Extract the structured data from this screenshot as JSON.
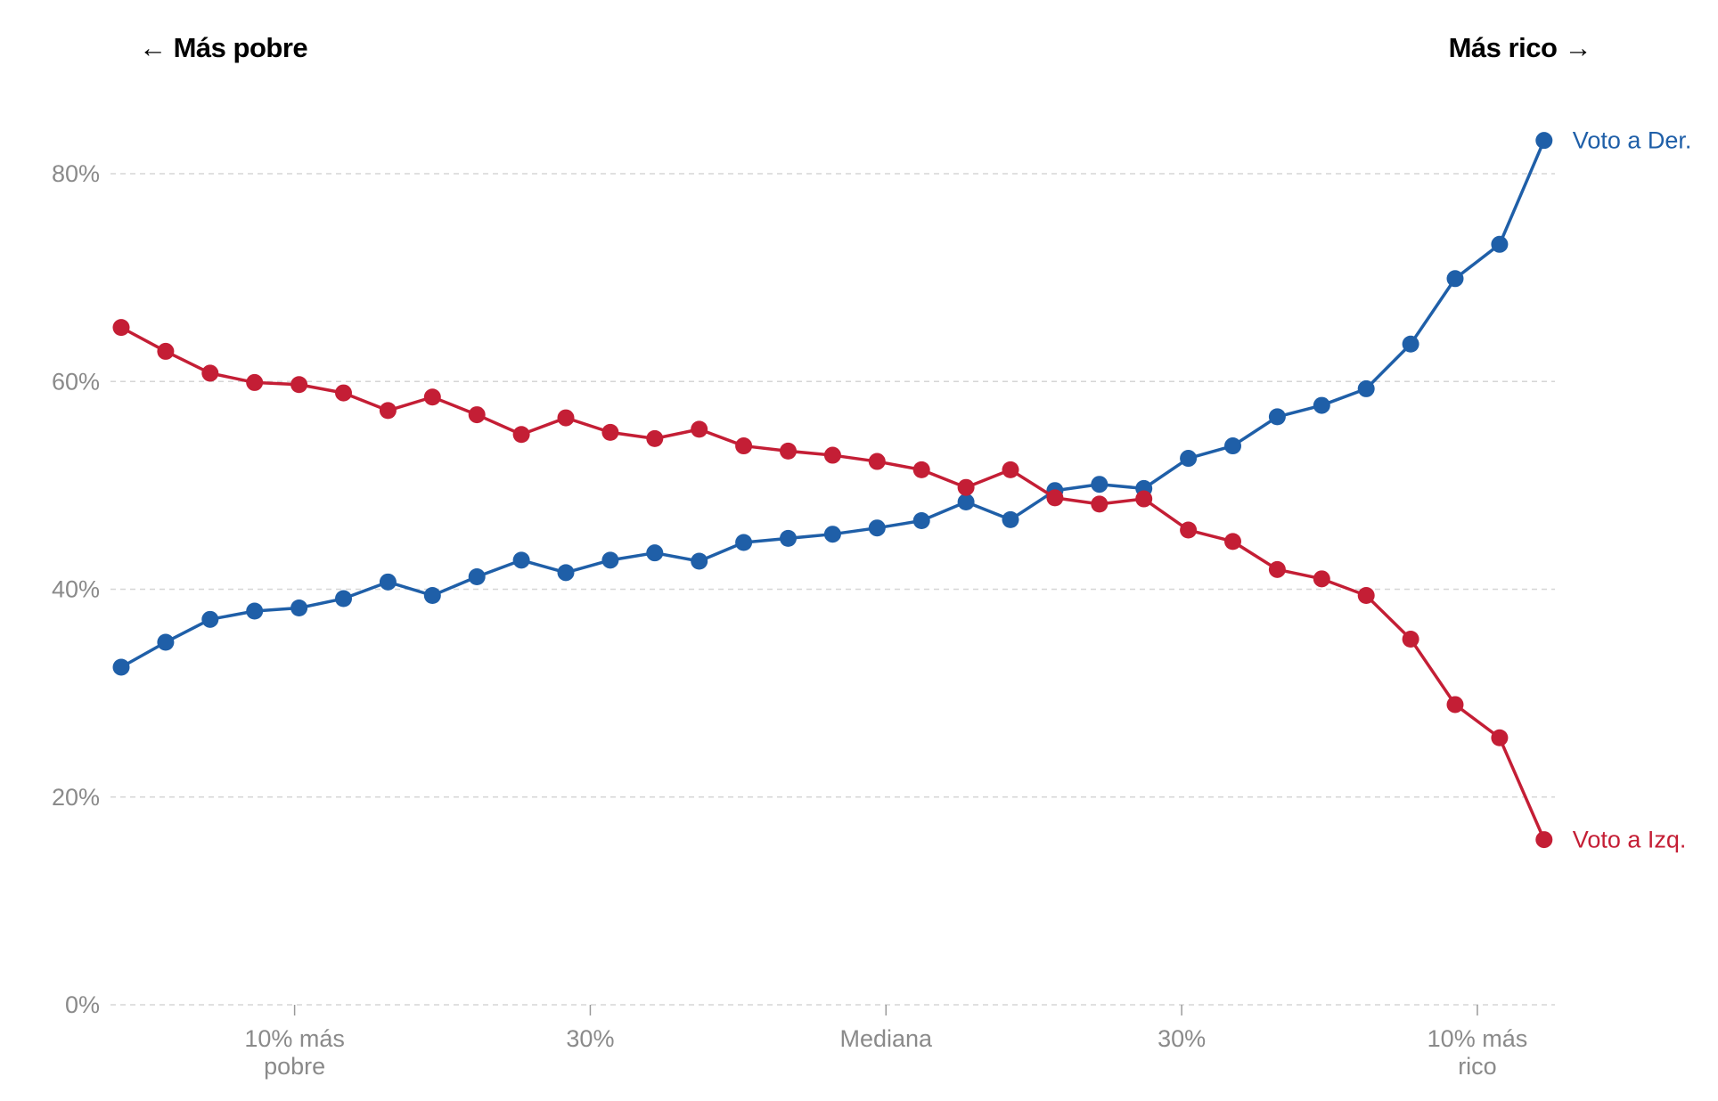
{
  "header": {
    "left_label": "← Más pobre",
    "right_label": "Más rico →"
  },
  "chart_data": {
    "type": "line",
    "ylim": [
      0,
      80
    ],
    "yticks": [
      0,
      20,
      40,
      60,
      80
    ],
    "ytick_labels": [
      "0%",
      "20%",
      "40%",
      "60%",
      "80%"
    ],
    "grid": true,
    "x_positions": 33,
    "xticks": [
      {
        "at": 3.9,
        "label": "10% más\npobre"
      },
      {
        "at": 10.55,
        "label": "30%"
      },
      {
        "at": 17.2,
        "label": "Mediana"
      },
      {
        "at": 23.85,
        "label": "30%"
      },
      {
        "at": 30.5,
        "label": "10% más\nrico"
      }
    ],
    "series": [
      {
        "name": "Voto a Der.",
        "color": "#1f5fa8",
        "values": [
          32.5,
          34.9,
          37.1,
          37.9,
          38.2,
          39.1,
          40.7,
          39.4,
          41.2,
          42.8,
          41.6,
          42.8,
          43.5,
          42.7,
          44.5,
          44.9,
          45.3,
          45.9,
          46.6,
          48.4,
          46.7,
          49.5,
          50.1,
          49.7,
          52.6,
          53.8,
          56.6,
          57.7,
          59.3,
          63.6,
          69.9,
          73.2,
          83.2
        ]
      },
      {
        "name": "Voto a Izq.",
        "color": "#c41e35",
        "values": [
          65.2,
          62.9,
          60.8,
          59.9,
          59.7,
          58.9,
          57.2,
          58.5,
          56.8,
          54.9,
          56.5,
          55.1,
          54.5,
          55.4,
          53.8,
          53.3,
          52.9,
          52.3,
          51.5,
          49.8,
          51.5,
          48.8,
          48.2,
          48.7,
          45.7,
          44.6,
          41.9,
          41.0,
          39.4,
          35.2,
          28.9,
          25.7,
          15.9
        ]
      }
    ]
  }
}
